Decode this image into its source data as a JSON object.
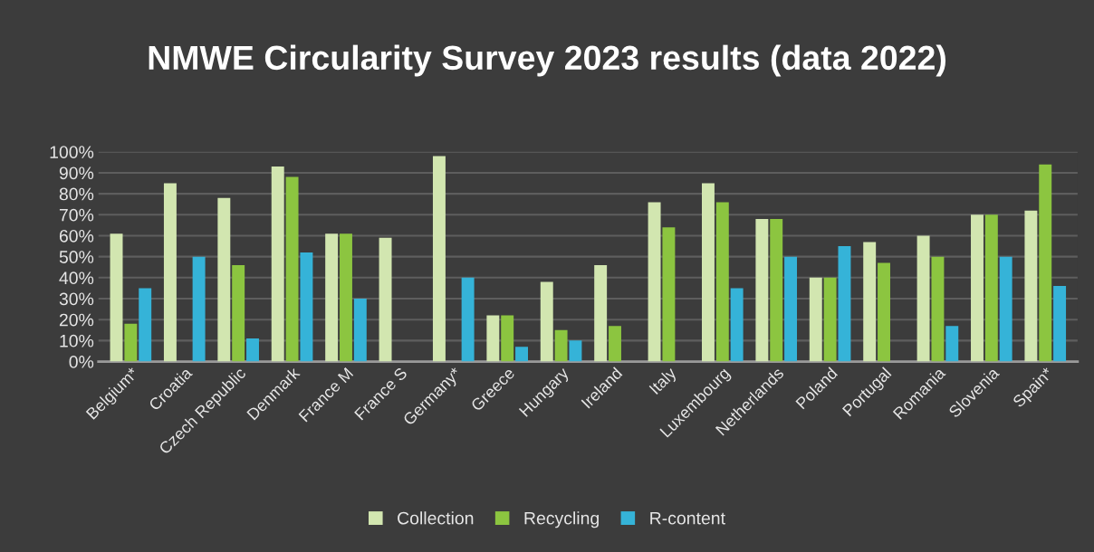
{
  "chart_data": {
    "type": "bar",
    "title": "NMWE Circularity Survey 2023 results (data 2022)",
    "categories": [
      "Belgium*",
      "Croatia",
      "Czech Republic",
      "Denmark",
      "France M",
      "France S",
      "Germany*",
      "Greece",
      "Hungary",
      "Ireland",
      "Italy",
      "Luxembourg",
      "Netherlands",
      "Poland",
      "Portugal",
      "Romania",
      "Slovenia",
      "Spain*"
    ],
    "series": [
      {
        "name": "Collection",
        "color": "#d2e6b0",
        "values": [
          61,
          85,
          78,
          93,
          61,
          59,
          98,
          22,
          38,
          46,
          76,
          85,
          68,
          40,
          57,
          60,
          70,
          72
        ]
      },
      {
        "name": "Recycling",
        "color": "#8cc540",
        "values": [
          18,
          null,
          46,
          88,
          61,
          null,
          null,
          22,
          15,
          17,
          64,
          76,
          68,
          40,
          47,
          50,
          70,
          94
        ]
      },
      {
        "name": "R-content",
        "color": "#35b3d8",
        "values": [
          35,
          50,
          11,
          52,
          30,
          null,
          40,
          7,
          10,
          null,
          null,
          35,
          50,
          55,
          null,
          17,
          50,
          36
        ]
      }
    ],
    "ylim": [
      0,
      100
    ],
    "yticks": [
      {
        "value": 0,
        "label": "0%"
      },
      {
        "value": 10,
        "label": "10%"
      },
      {
        "value": 20,
        "label": "20%"
      },
      {
        "value": 30,
        "label": "30%"
      },
      {
        "value": 40,
        "label": "40%"
      },
      {
        "value": 50,
        "label": "50%"
      },
      {
        "value": 60,
        "label": "60%"
      },
      {
        "value": 70,
        "label": "70%"
      },
      {
        "value": 80,
        "label": "80%"
      },
      {
        "value": 90,
        "label": "90%"
      },
      {
        "value": 100,
        "label": "100%"
      }
    ],
    "grid": "y",
    "legend": "bottom"
  }
}
